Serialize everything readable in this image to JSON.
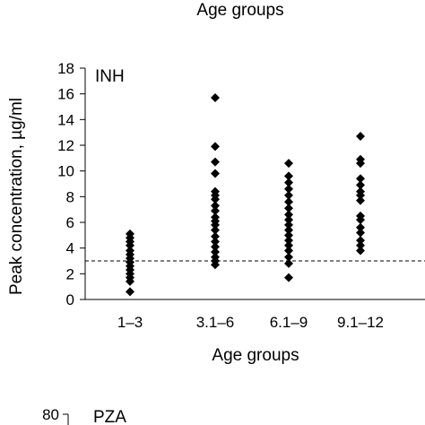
{
  "chart_data": [
    {
      "type": "scatter",
      "top_label": "Age groups",
      "panel_label": "INH",
      "ylabel": "Peak concentration, µg/ml",
      "xlabel": "Age groups",
      "categories": [
        "1–3",
        "3.1–6",
        "6.1–9",
        "9.1–12"
      ],
      "ylim": [
        0,
        18
      ],
      "yticks": [
        0,
        2,
        4,
        6,
        8,
        10,
        12,
        14,
        16,
        18
      ],
      "reference_line": 3,
      "marker_color": "#000000",
      "series": [
        {
          "points": [
            {
              "category": "1–3",
              "values": [
                5.1,
                4.8,
                4.5,
                4.2,
                3.8,
                3.5,
                3.2,
                2.9,
                2.6,
                2.3,
                2.0,
                1.7,
                1.4,
                0.6
              ]
            },
            {
              "category": "3.1–6",
              "values": [
                15.7,
                11.9,
                10.7,
                9.8,
                8.4,
                8.1,
                7.8,
                7.3,
                6.9,
                6.4,
                6.1,
                5.8,
                5.4,
                4.9,
                4.5,
                4.1,
                3.7,
                3.3,
                3.0,
                2.7
              ]
            },
            {
              "category": "6.1–9",
              "values": [
                10.6,
                9.6,
                9.1,
                8.6,
                8.1,
                7.6,
                7.1,
                6.6,
                6.2,
                5.8,
                5.4,
                5.0,
                4.6,
                4.2,
                3.8,
                3.3,
                2.8,
                1.7
              ]
            },
            {
              "category": "9.1–12",
              "values": [
                12.7,
                10.9,
                10.6,
                9.4,
                8.9,
                8.4,
                8.1,
                7.7,
                6.5,
                6.2,
                5.6,
                5.2,
                4.6,
                4.2,
                3.8
              ]
            }
          ]
        }
      ]
    },
    {
      "type": "scatter",
      "panel_label": "PZA",
      "yticks": [
        80
      ],
      "partial": true
    }
  ]
}
